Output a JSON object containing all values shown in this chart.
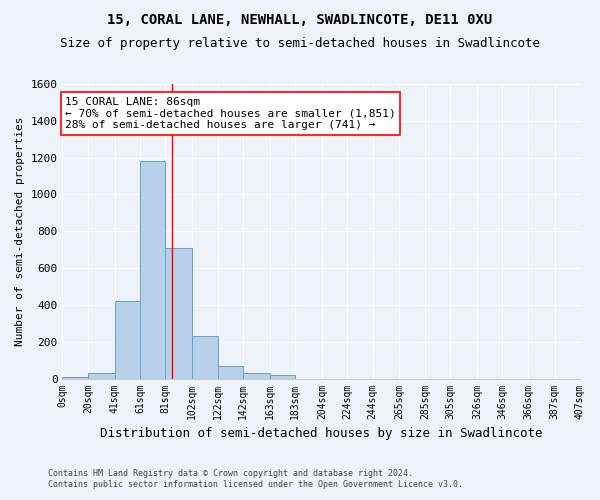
{
  "title1": "15, CORAL LANE, NEWHALL, SWADLINCOTE, DE11 0XU",
  "title2": "Size of property relative to semi-detached houses in Swadlincote",
  "xlabel": "Distribution of semi-detached houses by size in Swadlincote",
  "ylabel": "Number of semi-detached properties",
  "footnote1": "Contains HM Land Registry data © Crown copyright and database right 2024.",
  "footnote2": "Contains public sector information licensed under the Open Government Licence v3.0.",
  "bin_edges": [
    0,
    20,
    41,
    61,
    81,
    102,
    122,
    142,
    163,
    183,
    204,
    224,
    244,
    265,
    285,
    305,
    326,
    346,
    366,
    387,
    407
  ],
  "bin_labels": [
    "0sqm",
    "20sqm",
    "41sqm",
    "61sqm",
    "81sqm",
    "102sqm",
    "122sqm",
    "142sqm",
    "163sqm",
    "183sqm",
    "204sqm",
    "224sqm",
    "244sqm",
    "265sqm",
    "285sqm",
    "305sqm",
    "326sqm",
    "346sqm",
    "366sqm",
    "387sqm",
    "407sqm"
  ],
  "bar_heights": [
    10,
    30,
    420,
    1180,
    710,
    230,
    70,
    30,
    20,
    0,
    0,
    0,
    0,
    0,
    0,
    0,
    0,
    0,
    0,
    0
  ],
  "bar_color": "#b8d0ea",
  "bar_edge_color": "#6a9ec8",
  "property_line_x": 86,
  "vline_color": "red",
  "annotation_title": "15 CORAL LANE: 86sqm",
  "annotation_line1": "← 70% of semi-detached houses are smaller (1,851)",
  "annotation_line2": "28% of semi-detached houses are larger (741) →",
  "ylim": [
    0,
    1600
  ],
  "yticks": [
    0,
    200,
    400,
    600,
    800,
    1000,
    1200,
    1400,
    1600
  ],
  "background_color": "#eef2f9",
  "grid_color": "#ffffff",
  "title1_fontsize": 10,
  "title2_fontsize": 9,
  "xlabel_fontsize": 9,
  "ylabel_fontsize": 8,
  "tick_fontsize": 7,
  "annot_fontsize": 8,
  "footnote_fontsize": 6
}
